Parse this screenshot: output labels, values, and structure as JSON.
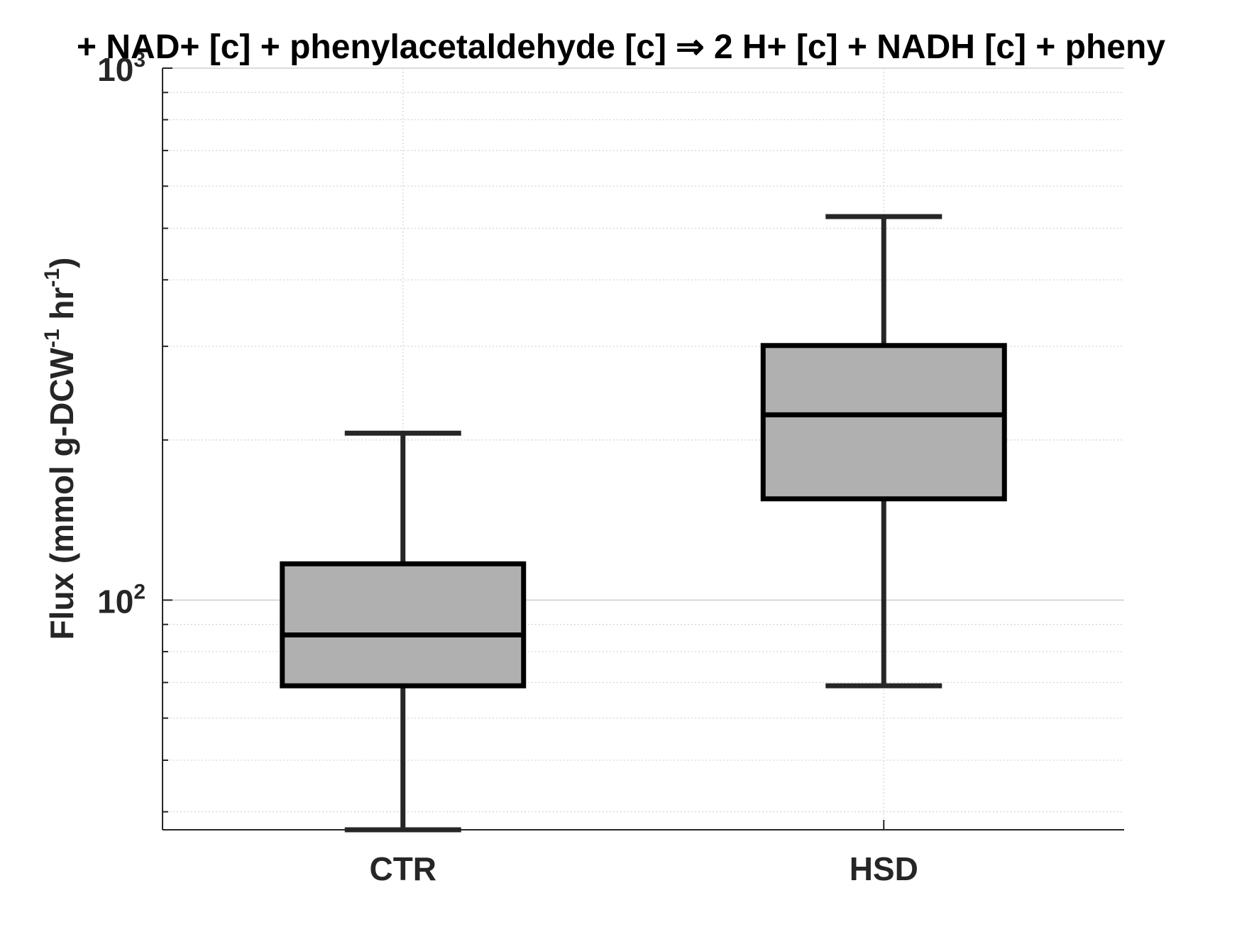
{
  "chart_data": {
    "type": "box",
    "title": "+ NAD+ [c] + phenylacetaldehyde [c] ⇒ 2 H+ [c] + NADH [c] + pheny",
    "ylabel": {
      "parts": [
        "Flux (mmol g-DCW",
        "-1",
        " hr",
        "-1",
        ")"
      ]
    },
    "yscale": "log",
    "ylim": [
      37,
      1000
    ],
    "y_ticks": [
      {
        "value": 100,
        "base": "10",
        "exp": "2"
      },
      {
        "value": 1000,
        "base": "10",
        "exp": "3"
      }
    ],
    "grid": true,
    "categories": [
      "CTR",
      "HSD"
    ],
    "boxes": [
      {
        "name": "CTR",
        "whisker_low": 37,
        "q1": 69,
        "median": 86,
        "q3": 117,
        "whisker_high": 206
      },
      {
        "name": "HSD",
        "whisker_low": 69,
        "q1": 155,
        "median": 223,
        "q3": 301,
        "whisker_high": 526
      }
    ],
    "colors": {
      "box_fill": "#b0b0b0",
      "box_edge": "#000000",
      "whisker": "#262626",
      "grid": "#d0d0d0",
      "axis": "#262626"
    }
  }
}
